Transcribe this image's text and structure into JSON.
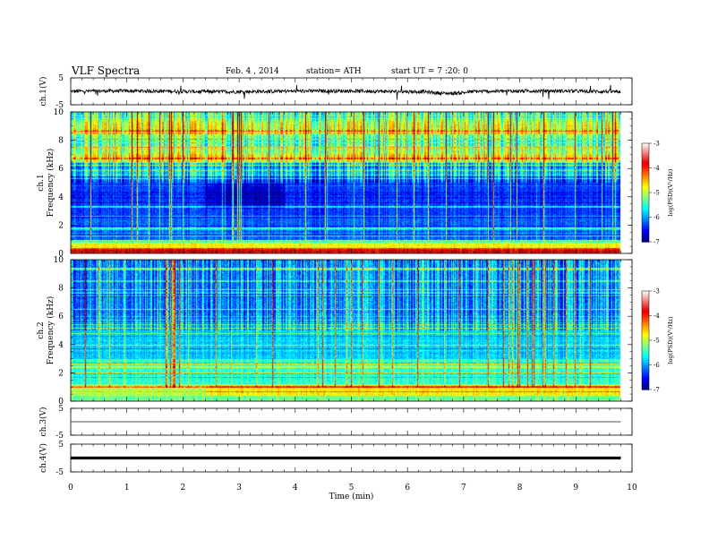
{
  "header": {
    "title": "VLF Spectra",
    "date": "Feb. 4 , 2014",
    "station": "station= ATH",
    "start": "start UT = 7 :20: 0"
  },
  "chart_data": [
    {
      "type": "line",
      "panel": "ch1",
      "ylabel": "ch.1(V)",
      "ylim": [
        -5,
        5
      ],
      "y_ticks": [
        5,
        -5
      ],
      "description_values": "waveform centered near 0 V, range about -1.5 to 1.5 V with sparse spikes to ~3 V"
    },
    {
      "type": "heatmap",
      "panel": "ch1",
      "ylabel": "ch.1\nFrequency (kHz)",
      "ylabel_top": "ch.1",
      "ylabel_main": "Frequency (kHz)",
      "ylim": [
        0,
        10
      ],
      "y_ticks": [
        0,
        2,
        4,
        6,
        8,
        10
      ],
      "xlim": [
        0,
        10
      ],
      "colorbar": {
        "label": "log(PSD)(V²/Hz)",
        "range": [
          -7,
          -3
        ],
        "ticks": [
          -3,
          -4,
          -5,
          -6,
          -7
        ]
      }
    },
    {
      "type": "heatmap",
      "panel": "ch2",
      "ylabel_top": "ch.2",
      "ylabel_main": "Frequency (kHz)",
      "ylim": [
        0,
        10
      ],
      "y_ticks": [
        0,
        2,
        4,
        6,
        8,
        10
      ],
      "xlim": [
        0,
        10
      ],
      "colorbar": {
        "label": "log(PSD)(V²/Hz)",
        "range": [
          -7,
          -3
        ],
        "ticks": [
          -3,
          -4,
          -5,
          -6,
          -7
        ]
      }
    },
    {
      "type": "line",
      "panel": "ch3",
      "ylabel": "ch.3(V)",
      "ylim": [
        -5,
        5
      ],
      "y_ticks": [
        5,
        -5
      ],
      "level": 0
    },
    {
      "type": "line",
      "panel": "ch4",
      "ylabel": "ch.4(V)",
      "ylim": [
        -5,
        5
      ],
      "y_ticks": [
        5,
        -5
      ],
      "level": 0
    }
  ],
  "x_axis": {
    "label": "Time (min)",
    "ticks": [
      0,
      1,
      2,
      3,
      4,
      5,
      6,
      7,
      8,
      9,
      10
    ],
    "xlim": [
      0,
      10
    ],
    "data_end": 9.8
  }
}
